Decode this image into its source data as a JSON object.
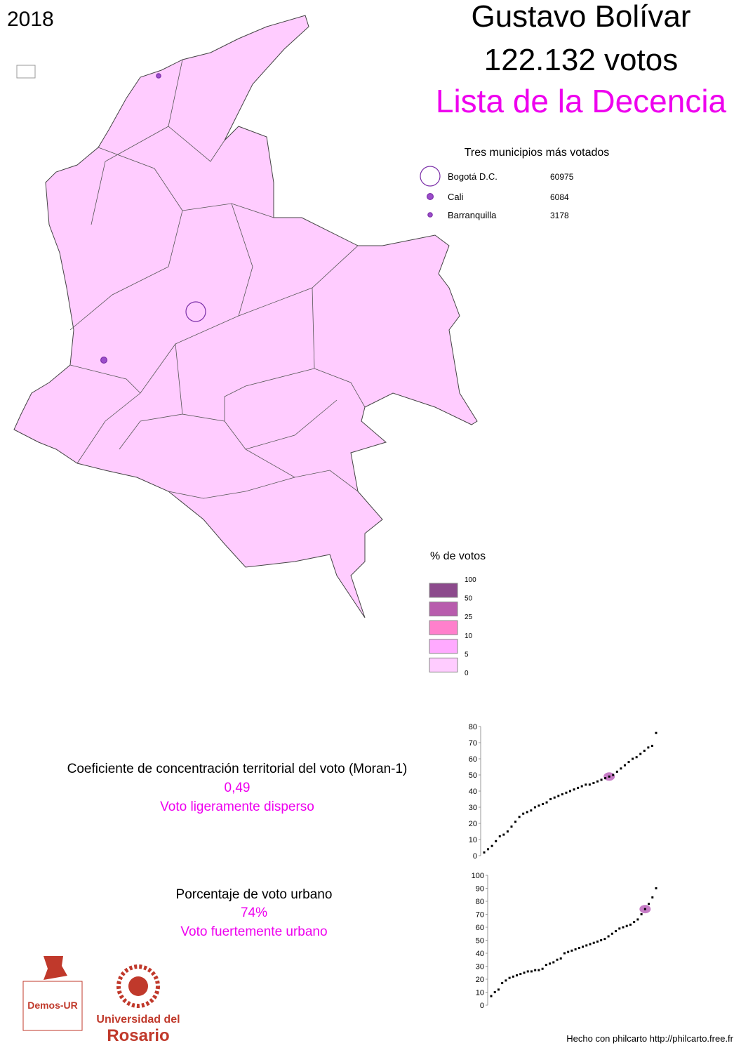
{
  "header": {
    "year": "2018",
    "candidate": "Gustavo Bolívar",
    "votes": "122.132 votos",
    "list": "Lista de la Decencia"
  },
  "top_municipalities": {
    "title": "Tres municipios más votados",
    "items": [
      {
        "name": "Bogotá D.C.",
        "votes": 60975
      },
      {
        "name": "Cali",
        "votes": 6084
      },
      {
        "name": "Barranquilla",
        "votes": 3178
      }
    ]
  },
  "legend": {
    "title": "% de votos",
    "breaks": [
      100,
      50,
      25,
      10,
      5,
      0
    ],
    "colors": [
      "#8c4a8c",
      "#b85cad",
      "#ff80cc",
      "#ffaaff",
      "#ffccff"
    ]
  },
  "indicators": [
    {
      "label": "Coeficiente de concentración territorial del voto (Moran-1)",
      "value": "0,49",
      "description": "Voto ligeramente disperso"
    },
    {
      "label": "Porcentaje de voto urbano",
      "value": "74%",
      "description": "Voto fuertemente urbano"
    }
  ],
  "charts": [
    {
      "type": "scatter",
      "color": "#000000",
      "highlight_color": "#c77dc7",
      "highlight": 49,
      "ylim": [
        0,
        80
      ],
      "yticks": [
        0,
        10,
        20,
        30,
        40,
        50,
        60,
        70,
        80
      ],
      "values": [
        2,
        4,
        6,
        9,
        12,
        13,
        15,
        18,
        21,
        24,
        26,
        27,
        28,
        30,
        31,
        32,
        33,
        35,
        36,
        37,
        38,
        39,
        40,
        41,
        42,
        43,
        44,
        44,
        45,
        46,
        47,
        48,
        49,
        50,
        52,
        54,
        56,
        58,
        60,
        61,
        63,
        65,
        67,
        68,
        76
      ]
    },
    {
      "type": "scatter",
      "color": "#000000",
      "highlight_color": "#c77dc7",
      "highlight": 74,
      "ylim": [
        0,
        100
      ],
      "yticks": [
        0,
        10,
        20,
        30,
        40,
        50,
        60,
        70,
        80,
        90,
        100
      ],
      "values": [
        7,
        10,
        12,
        17,
        19,
        21,
        22,
        23,
        24,
        25,
        26,
        26,
        27,
        27,
        28,
        31,
        32,
        33,
        35,
        36,
        40,
        41,
        42,
        43,
        44,
        45,
        46,
        47,
        48,
        49,
        50,
        51,
        53,
        55,
        57,
        59,
        60,
        61,
        62,
        64,
        66,
        70,
        74,
        78,
        83,
        90
      ]
    }
  ],
  "logos": {
    "demos": "Demos-UR",
    "university": [
      "Universidad del",
      "Rosario"
    ]
  },
  "footer": "Hecho con philcarto http://philcarto.free.fr"
}
